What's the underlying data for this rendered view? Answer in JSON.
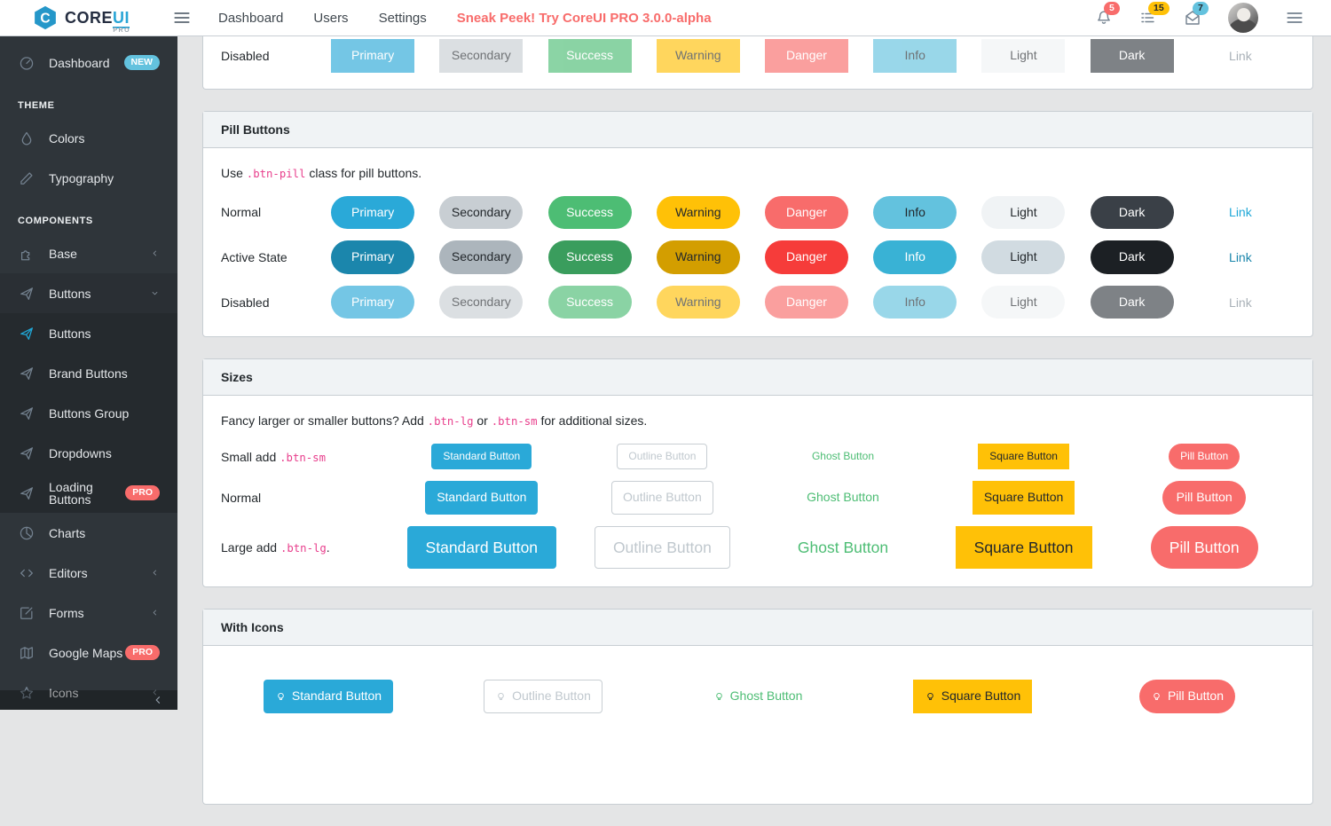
{
  "navbar": {
    "brand": {
      "core": "CORE",
      "ui": "UI",
      "suffix": "PRO"
    },
    "links": [
      {
        "label": "Dashboard"
      },
      {
        "label": "Users"
      },
      {
        "label": "Settings"
      }
    ],
    "promo": "Sneak Peek! Try CoreUI PRO 3.0.0-alpha",
    "notifications": {
      "bell": "5",
      "tasks": "15",
      "messages": "7"
    }
  },
  "sidebar": {
    "items": [
      {
        "type": "link",
        "label": "Dashboard",
        "icon": "speedometer-icon",
        "badge": {
          "text": "NEW",
          "color": "info"
        }
      },
      {
        "type": "title",
        "label": "THEME"
      },
      {
        "type": "link",
        "label": "Colors",
        "icon": "drop-icon"
      },
      {
        "type": "link",
        "label": "Typography",
        "icon": "pencil-icon"
      },
      {
        "type": "title",
        "label": "COMPONENTS"
      },
      {
        "type": "dropdown",
        "label": "Base",
        "icon": "puzzle-icon",
        "state": "collapsed"
      },
      {
        "type": "dropdown",
        "label": "Buttons",
        "icon": "cursor-icon",
        "state": "open"
      },
      {
        "type": "link",
        "label": "Buttons",
        "icon": "cursor-icon",
        "child": true,
        "active": true
      },
      {
        "type": "link",
        "label": "Brand Buttons",
        "icon": "cursor-icon",
        "child": true
      },
      {
        "type": "link",
        "label": "Buttons Group",
        "icon": "cursor-icon",
        "child": true
      },
      {
        "type": "link",
        "label": "Dropdowns",
        "icon": "cursor-icon",
        "child": true
      },
      {
        "type": "link",
        "label": "Loading Buttons",
        "icon": "cursor-icon",
        "child": true,
        "badge": {
          "text": "PRO",
          "color": "danger"
        }
      },
      {
        "type": "link",
        "label": "Charts",
        "icon": "chart-pie-icon"
      },
      {
        "type": "dropdown",
        "label": "Editors",
        "icon": "code-icon",
        "state": "collapsed"
      },
      {
        "type": "dropdown",
        "label": "Forms",
        "icon": "note-icon",
        "state": "collapsed"
      },
      {
        "type": "link",
        "label": "Google Maps",
        "icon": "map-icon",
        "badge": {
          "text": "PRO",
          "color": "danger"
        }
      },
      {
        "type": "dropdown",
        "label": "Icons",
        "icon": "star-icon",
        "state": "collapsed"
      }
    ]
  },
  "variants": [
    {
      "key": "primary",
      "label": "Primary"
    },
    {
      "key": "secondary",
      "label": "Secondary"
    },
    {
      "key": "success",
      "label": "Success"
    },
    {
      "key": "warning",
      "label": "Warning"
    },
    {
      "key": "danger",
      "label": "Danger"
    },
    {
      "key": "info",
      "label": "Info"
    },
    {
      "key": "light",
      "label": "Light"
    },
    {
      "key": "dark",
      "label": "Dark"
    },
    {
      "key": "link",
      "label": "Link"
    }
  ],
  "cards": {
    "square_buttons": {
      "rows": [
        {
          "label": "Disabled",
          "state": "disabled"
        }
      ]
    },
    "pill_buttons": {
      "title": "Pill Buttons",
      "desc": [
        {
          "t": "text",
          "v": "Use "
        },
        {
          "t": "code",
          "v": ".btn-pill"
        },
        {
          "t": "text",
          "v": " class for pill buttons."
        }
      ],
      "rows": [
        {
          "label": "Normal",
          "state": "normal"
        },
        {
          "label": "Active State",
          "state": "active"
        },
        {
          "label": "Disabled",
          "state": "disabled"
        }
      ]
    },
    "sizes": {
      "title": "Sizes",
      "desc": [
        {
          "t": "text",
          "v": "Fancy larger or smaller buttons? Add "
        },
        {
          "t": "code",
          "v": ".btn-lg"
        },
        {
          "t": "text",
          "v": " or "
        },
        {
          "t": "code",
          "v": ".btn-sm"
        },
        {
          "t": "text",
          "v": " for additional sizes."
        }
      ],
      "rows": [
        {
          "label": [
            {
              "t": "text",
              "v": "Small add "
            },
            {
              "t": "code",
              "v": ".btn-sm"
            }
          ],
          "size": "sm"
        },
        {
          "label": [
            {
              "t": "text",
              "v": "Normal"
            }
          ],
          "size": ""
        },
        {
          "label": [
            {
              "t": "text",
              "v": "Large add "
            },
            {
              "t": "code",
              "v": ".btn-lg"
            },
            {
              "t": "text",
              "v": "."
            }
          ],
          "size": "lg"
        }
      ],
      "buttons": [
        {
          "label": "Standard Button",
          "kind": "standard"
        },
        {
          "label": "Outline Button",
          "kind": "outline"
        },
        {
          "label": "Ghost Button",
          "kind": "ghost"
        },
        {
          "label": "Square Button",
          "kind": "square"
        },
        {
          "label": "Pill Button",
          "kind": "pill"
        }
      ]
    },
    "with_icons": {
      "title": "With Icons",
      "buttons": [
        {
          "label": "Standard Button",
          "kind": "standard",
          "icon": "lightbulb-icon"
        },
        {
          "label": "Outline Button",
          "kind": "outline",
          "icon": "lightbulb-icon"
        },
        {
          "label": "Ghost Button",
          "kind": "ghost",
          "icon": "lightbulb-icon"
        },
        {
          "label": "Square Button",
          "kind": "square",
          "icon": "lightbulb-icon"
        },
        {
          "label": "Pill Button",
          "kind": "pill",
          "icon": "lightbulb-icon"
        }
      ]
    }
  },
  "colors": {
    "primary": "#20a8d8",
    "secondary": "#c8ced3",
    "success": "#4dbd74",
    "warning": "#ffc107",
    "danger": "#f86c6b",
    "info": "#63c2de",
    "light": "#f0f3f5",
    "dark": "#2f353a",
    "code_pink": "#e83e8c",
    "promo": "#f86c6b",
    "sidebar_bg": "#2f353a",
    "page_bg": "#e4e5e6",
    "card_header_bg": "#f0f3f5",
    "card_border": "#c8ced3"
  }
}
